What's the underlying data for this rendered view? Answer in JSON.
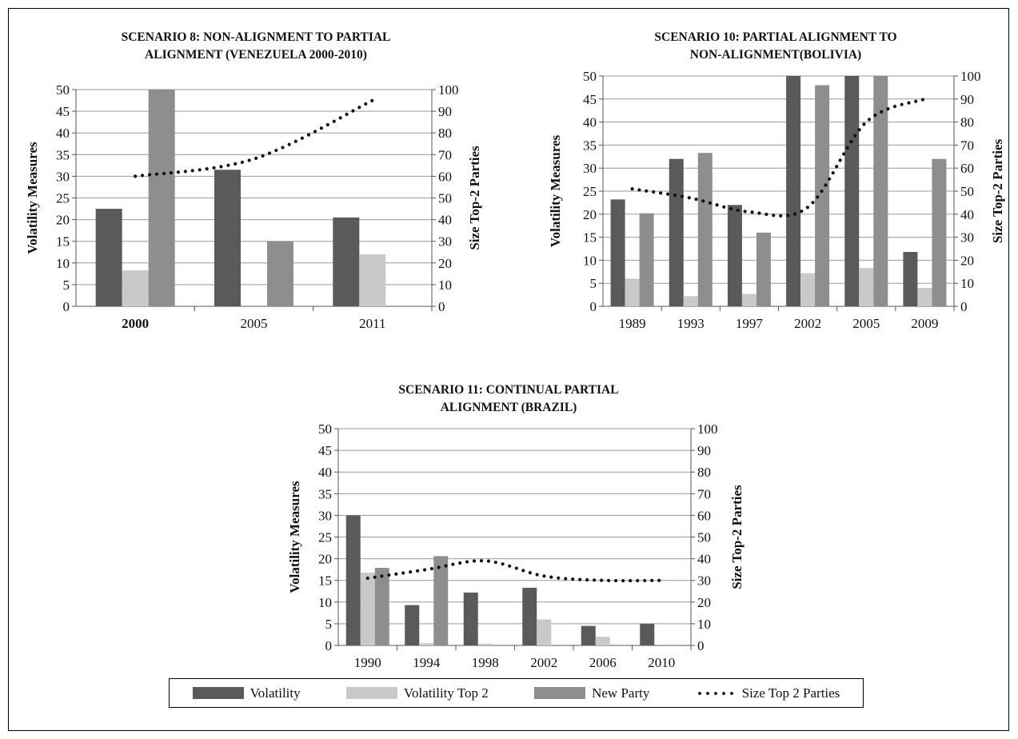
{
  "colors": {
    "volatility": "#5a5a5c",
    "volatility_top2": "#c9c9c9",
    "new_party": "#8e8e8e",
    "size_line": "#111111"
  },
  "legend": {
    "volatility": "Volatility",
    "volatility_top2": "Volatility Top 2",
    "new_party": "New Party",
    "size": "Size Top 2 Parties"
  },
  "chart_data": [
    {
      "type": "bar",
      "title": "SCENARIO 8: NON-ALIGNMENT TO PARTIAL\nALIGNMENT (VENEZUELA 2000-2010)",
      "ylabel": "Volatility Measures",
      "y2label": "Size Top-2 Parties",
      "ylim": [
        0,
        50
      ],
      "y2lim": [
        0,
        100
      ],
      "yticks": [
        "0",
        "5",
        "10",
        "15",
        "20",
        "25",
        "30",
        "35",
        "40",
        "45",
        "50"
      ],
      "y2ticks": [
        "0",
        "10",
        "20",
        "30",
        "40",
        "50",
        "60",
        "70",
        "80",
        "90",
        "100"
      ],
      "categories": [
        "2000",
        "2005",
        "2011"
      ],
      "series": [
        {
          "name": "Volatility",
          "values": [
            22.5,
            31.5,
            20.5
          ]
        },
        {
          "name": "Volatility Top 2",
          "values": [
            8.3,
            0,
            12
          ]
        },
        {
          "name": "New Party",
          "values": [
            50,
            15,
            0
          ]
        }
      ],
      "line": {
        "name": "Size Top 2 Parties",
        "axis": "right",
        "values": [
          60,
          68,
          95
        ]
      }
    },
    {
      "type": "bar",
      "title": "SCENARIO 10: PARTIAL ALIGNMENT TO\nNON-ALIGNMENT(BOLIVIA)",
      "ylabel": "Volatility Measures",
      "y2label": "Size Top-2 Parties",
      "ylim": [
        0,
        50
      ],
      "y2lim": [
        0,
        100
      ],
      "yticks": [
        "0",
        "5",
        "10",
        "15",
        "20",
        "25",
        "30",
        "35",
        "40",
        "45",
        "50"
      ],
      "y2ticks": [
        "0",
        "10",
        "20",
        "30",
        "40",
        "50",
        "60",
        "70",
        "80",
        "90",
        "100"
      ],
      "categories": [
        "1989",
        "1993",
        "1997",
        "2002",
        "2005",
        "2009"
      ],
      "series": [
        {
          "name": "Volatility",
          "values": [
            23.2,
            32,
            22,
            50,
            50,
            11.8
          ]
        },
        {
          "name": "Volatility Top 2",
          "values": [
            6,
            2.2,
            2.7,
            7.2,
            8.3,
            4
          ]
        },
        {
          "name": "New Party",
          "values": [
            20.2,
            33.3,
            16,
            48,
            50,
            32
          ]
        }
      ],
      "line": {
        "name": "Size Top 2 Parties",
        "axis": "right",
        "values": [
          51,
          47,
          41,
          43,
          80,
          90
        ]
      }
    },
    {
      "type": "bar",
      "title": "SCENARIO 11: CONTINUAL PARTIAL\nALIGNMENT (BRAZIL)",
      "ylabel": "Volatility Measures",
      "y2label": "Size Top-2 Parties",
      "ylim": [
        0,
        50
      ],
      "y2lim": [
        0,
        100
      ],
      "yticks": [
        "0",
        "5",
        "10",
        "15",
        "20",
        "25",
        "30",
        "35",
        "40",
        "45",
        "50"
      ],
      "y2ticks": [
        "0",
        "10",
        "20",
        "30",
        "40",
        "50",
        "60",
        "70",
        "80",
        "90",
        "100"
      ],
      "categories": [
        "1990",
        "1994",
        "1998",
        "2002",
        "2006",
        "2010"
      ],
      "series": [
        {
          "name": "Volatility",
          "values": [
            30,
            9.3,
            12.2,
            13.3,
            4.5,
            5
          ]
        },
        {
          "name": "Volatility Top 2",
          "values": [
            16.8,
            0.5,
            0.4,
            6,
            2,
            0
          ]
        },
        {
          "name": "New Party",
          "values": [
            17.9,
            20.6,
            0,
            0,
            0,
            0
          ]
        }
      ],
      "line": {
        "name": "Size Top 2 Parties",
        "axis": "right",
        "values": [
          31,
          35,
          39,
          32,
          30,
          30
        ]
      }
    }
  ]
}
